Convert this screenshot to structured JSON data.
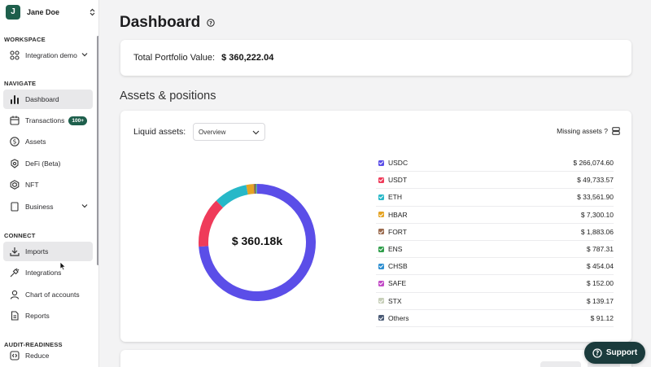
{
  "user": {
    "initial": "J",
    "name": "Jane Doe"
  },
  "sidebar": {
    "workspace_label": "WORKSPACE",
    "workspace_item": "Integration demo",
    "navigate_label": "NAVIGATE",
    "navigate": [
      {
        "label": "Dashboard",
        "icon": "bar-chart-icon"
      },
      {
        "label": "Transactions",
        "icon": "calendar-icon",
        "badge": "100+"
      },
      {
        "label": "Assets",
        "icon": "dollar-circle-icon"
      },
      {
        "label": "DeFi (Beta)",
        "icon": "defi-icon"
      },
      {
        "label": "NFT",
        "icon": "nft-icon"
      },
      {
        "label": "Business",
        "icon": "building-icon"
      }
    ],
    "connect_label": "CONNECT",
    "connect": [
      {
        "label": "Imports",
        "icon": "download-icon"
      },
      {
        "label": "Integrations",
        "icon": "plug-icon"
      },
      {
        "label": "Chart of accounts",
        "icon": "person-icon"
      },
      {
        "label": "Reports",
        "icon": "document-icon"
      }
    ],
    "audit_label": "AUDIT-READINESS",
    "audit": [
      {
        "label": "Reduce",
        "icon": "reduce-icon"
      }
    ]
  },
  "header": {
    "title": "Dashboard"
  },
  "portfolio": {
    "label": "Total Portfolio Value:",
    "value": "$ 360,222.04"
  },
  "assets": {
    "section_title": "Assets & positions",
    "liquid_label": "Liquid assets:",
    "select_value": "Overview",
    "missing_label": "Missing assets ?",
    "total_label": "$ 360.18k"
  },
  "chart_data": {
    "type": "pie",
    "categories": [
      "USDC",
      "USDT",
      "ETH",
      "HBAR",
      "FORT",
      "ENS",
      "CHSB",
      "SAFE",
      "STX",
      "Others"
    ],
    "values": [
      266074.6,
      49733.57,
      33561.9,
      7300.1,
      1883.06,
      787.31,
      454.04,
      152.0,
      139.17,
      91.12
    ],
    "value_labels": [
      "$ 266,074.60",
      "$ 49,733.57",
      "$ 33,561.90",
      "$ 7,300.10",
      "$ 1,883.06",
      "$ 787.31",
      "$ 454.04",
      "$ 152.00",
      "$ 139.17",
      "$ 91.12"
    ],
    "colors": [
      "#5b4ee8",
      "#ef3b5a",
      "#27b8c8",
      "#e5a323",
      "#9b6b4f",
      "#2f9e4a",
      "#2e8fd1",
      "#c24bc7",
      "#c7cfb9",
      "#4a5a75"
    ],
    "center_label": "$ 360.18k",
    "legend_placement": "right"
  },
  "support": {
    "label": "Support"
  }
}
